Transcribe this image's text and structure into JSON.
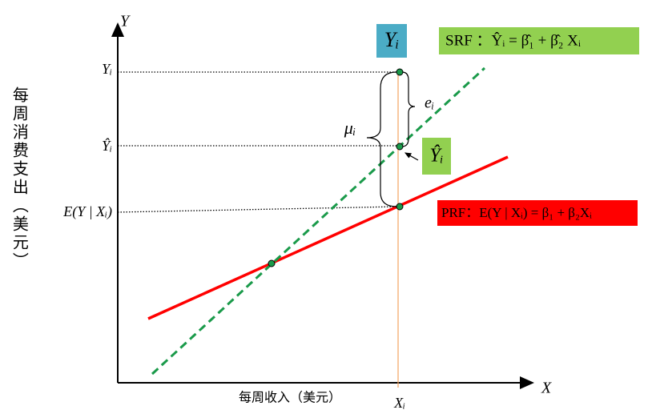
{
  "axes": {
    "y_label": "Y",
    "x_label": "X",
    "y_title": "每周消费支出（美元）",
    "x_title": "每周收入（美元）",
    "x_tick": "Xᵢ",
    "y_ticks": [
      "Yᵢ",
      "Ŷᵢ",
      "E(Y | Xᵢ)"
    ]
  },
  "annotations": {
    "observed_box": "Yᵢ",
    "fitted_box": "Ŷᵢ",
    "residual": "eᵢ",
    "error": "μᵢ",
    "srf": "SRF ：Ŷᵢ = β̂₁ + β̂₂ Xᵢ",
    "prf": "PRF：E(Y | Xᵢ) = β₁ + β₂Xᵢ"
  }
}
